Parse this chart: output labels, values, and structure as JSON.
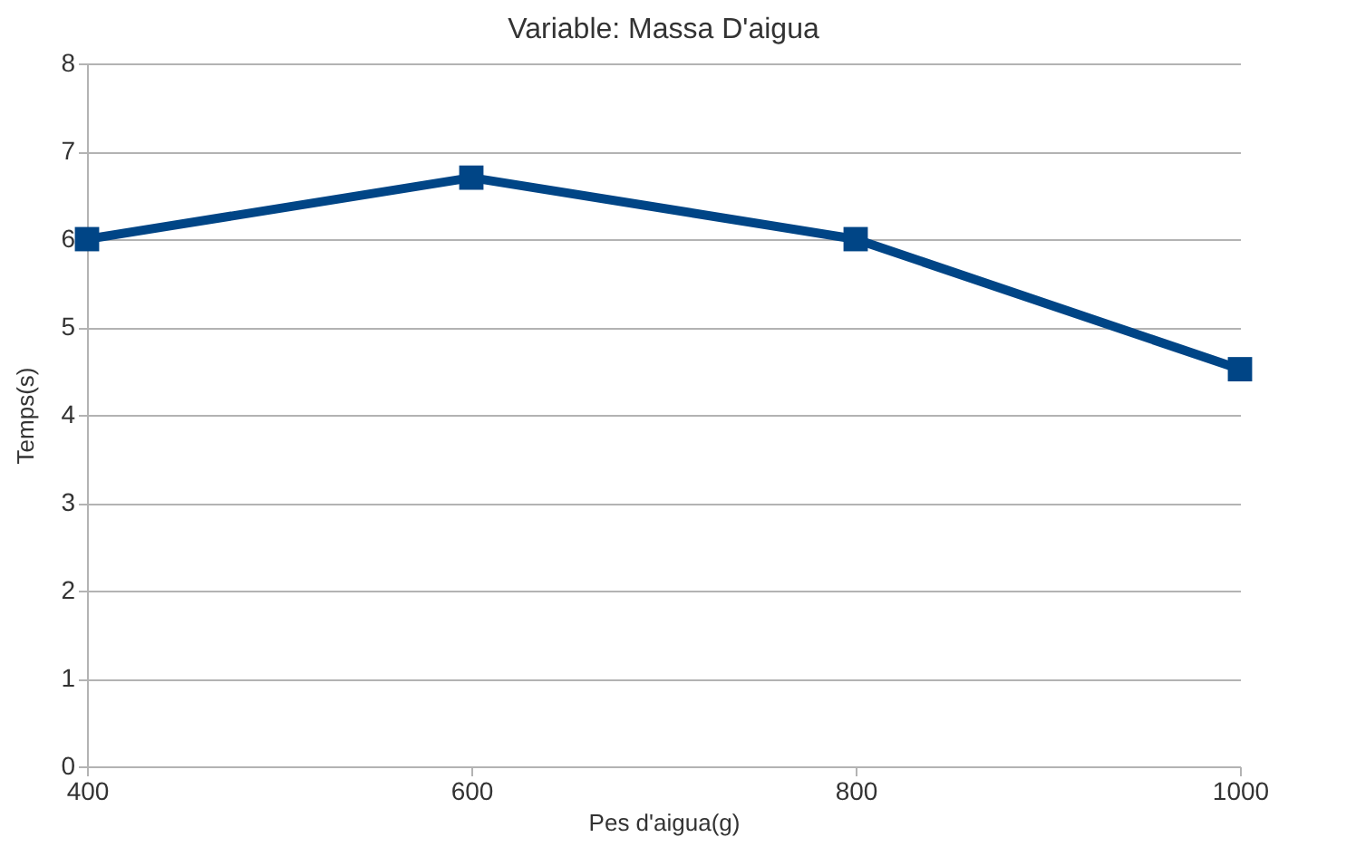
{
  "chart_data": {
    "type": "line",
    "title": "Variable: Massa D'aigua",
    "xlabel": "Pes d'aigua(g)",
    "ylabel": "Temps(s)",
    "x": [
      400,
      600,
      800,
      1000
    ],
    "series": [
      {
        "color": "#004586",
        "values": [
          6,
          6.7,
          6,
          4.52
        ]
      }
    ],
    "xlim": [
      400,
      1000
    ],
    "xticks": [
      400,
      600,
      800,
      1000
    ],
    "ylim": [
      0,
      8
    ],
    "yticks": [
      0,
      1,
      2,
      3,
      4,
      5,
      6,
      7,
      8
    ],
    "grid": "y",
    "marker": "square",
    "line_style": "solid",
    "legend": false
  }
}
